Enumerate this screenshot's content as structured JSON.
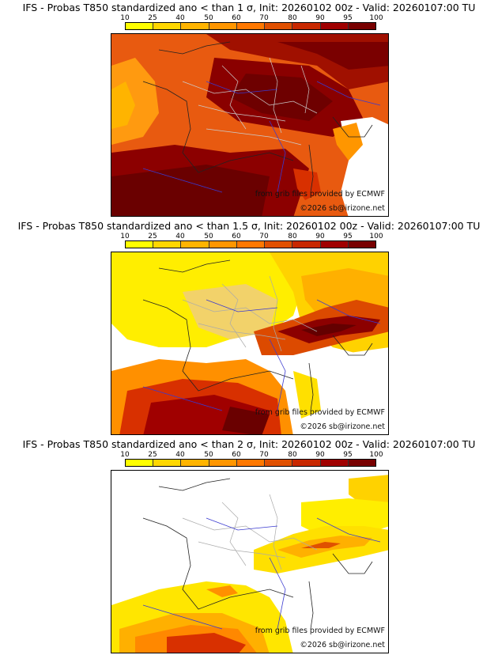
{
  "colorbar": {
    "labels": [
      "10",
      "25",
      "40",
      "50",
      "60",
      "70",
      "80",
      "90",
      "95",
      "100"
    ],
    "colors": [
      "#ffff00",
      "#ffd700",
      "#ffb400",
      "#ff9600",
      "#ff7800",
      "#f05a00",
      "#dc3200",
      "#b40000",
      "#8c0000",
      "#640000"
    ]
  },
  "map_colors": {
    "land_line": "#222222",
    "border": "#cccccc",
    "river": "#3a3ad0",
    "sea": "#ffffff"
  },
  "panels": [
    {
      "title": "IFS - Probas T850  standardized ano < than 1 σ, Init: 20260102 00z - Valid: 20260107:00 TU",
      "credit": "from grib files provided by ECMWF",
      "copyright": "©2026 sb@irizone.net"
    },
    {
      "title": "IFS - Probas T850  standardized ano < than 1.5 σ, Init: 20260102 00z - Valid: 20260107:00 TU",
      "credit": "from grib files provided by ECMWF",
      "copyright": "©2026 sb@irizone.net"
    },
    {
      "title": "IFS - Probas T850  standardized ano < than 2 σ, Init: 20260102 00z - Valid: 20260107:00 TU",
      "credit": "from grib files provided by ECMWF",
      "copyright": "©2026 sb@irizone.net"
    }
  ]
}
